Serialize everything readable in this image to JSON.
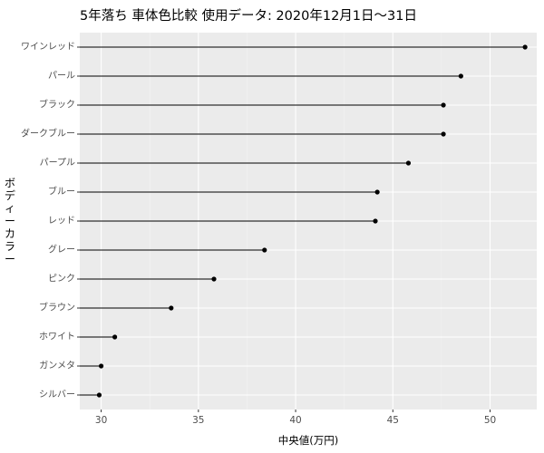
{
  "chart_data": {
    "type": "lollipop",
    "title": "5年落ち 車体色比較 使用データ: 2020年12月1日〜31日",
    "xlabel": "中央値(万円)",
    "ylabel": "ボディーカラー",
    "xlim": [
      28.9,
      52.4
    ],
    "xticks": [
      30,
      35,
      40,
      45,
      50
    ],
    "grid": true,
    "colors": {
      "panel": "#ebebeb",
      "grid_major": "#ffffff",
      "grid_minor": "#f4f4f4",
      "mark": "#000000",
      "tick_text": "#4d4d4d",
      "axis_text": "#000000"
    },
    "categories": [
      "ワインレッド",
      "パール",
      "ブラック",
      "ダークブルー",
      "パープル",
      "ブルー",
      "レッド",
      "グレー",
      "ピンク",
      "ブラウン",
      "ホワイト",
      "ガンメタ",
      "シルバー"
    ],
    "values": [
      51.8,
      48.5,
      47.6,
      47.6,
      45.8,
      44.2,
      44.1,
      38.4,
      35.8,
      33.6,
      30.7,
      30.0,
      29.9
    ]
  }
}
